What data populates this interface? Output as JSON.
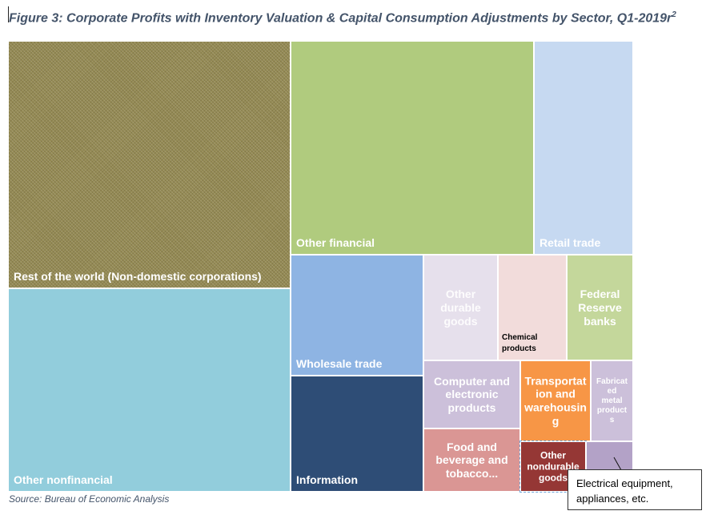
{
  "chart_data": {
    "type": "treemap",
    "title": "Figure 3: Corporate Profits with Inventory Valuation & Capital Consumption Adjustments by Sector, Q1-2019r",
    "title_superscript": "2",
    "source": "Source: Bureau of Economic Analysis",
    "callout": "Electrical equipment, appliances, etc.",
    "sectors": [
      {
        "name": "Rest of the world (Non-domestic corporations)",
        "value": 353,
        "color": "#948a54"
      },
      {
        "name": "Other nonfinancial",
        "value": 360,
        "color": "#92cddc"
      },
      {
        "name": "Other financial",
        "value": 253,
        "color": "#b0cb7e"
      },
      {
        "name": "Retail trade",
        "value": 114,
        "color": "#c6d9f1"
      },
      {
        "name": "Wholesale trade",
        "value": 99,
        "color": "#8eb4e3"
      },
      {
        "name": "Information",
        "value": 93,
        "color": "#2e4d76"
      },
      {
        "name": "Other durable goods",
        "value": 43,
        "color": "#e6e0ec"
      },
      {
        "name": "Chemical products",
        "value": 43,
        "color": "#f2dcdb"
      },
      {
        "name": "Federal Reserve banks",
        "value": 41,
        "color": "#c4d79b"
      },
      {
        "name": "Computer and electronic products",
        "value": 38,
        "color": "#ccc0da"
      },
      {
        "name": "Food and beverage and tobacco...",
        "value": 37,
        "color": "#da9694"
      },
      {
        "name": "Transportation and warehousing",
        "value": 24,
        "color": "#f79646"
      },
      {
        "name": "Fabricated metal products",
        "value": 14,
        "color": "#ccc0da"
      },
      {
        "name": "Other nondurable goods",
        "value": 12,
        "color": "#953735"
      },
      {
        "name": "Electrical equipment, appliances, etc.",
        "value": 7,
        "color": "#b3a2c7"
      }
    ]
  }
}
